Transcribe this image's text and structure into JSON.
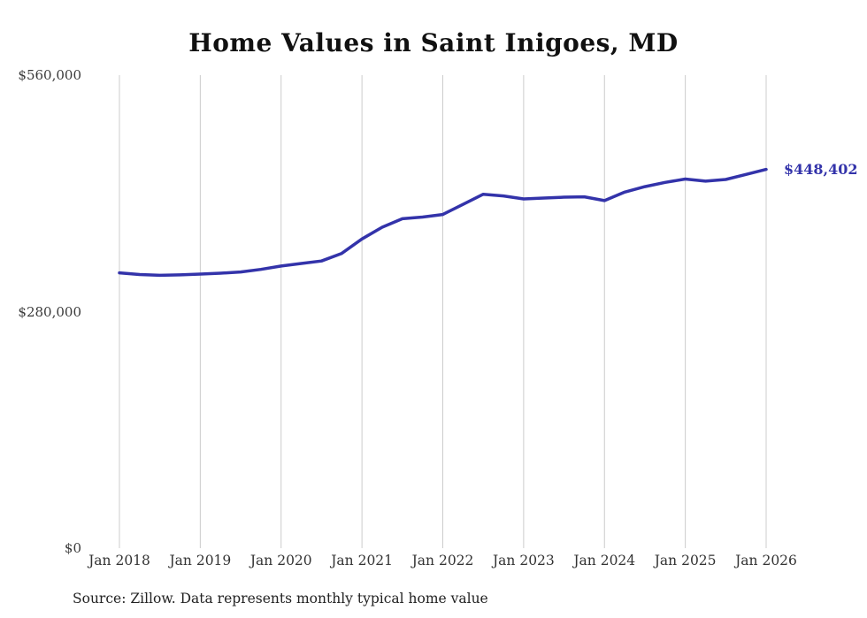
{
  "chart": {
    "title": "Home Values in Saint Inigoes, MD",
    "end_label": "$448,402",
    "source": "Source: Zillow. Data represents monthly typical home value",
    "line_color": "#3333aa",
    "grid_color": "#cccccc",
    "title_color": "#111111"
  },
  "chart_data": {
    "type": "line",
    "title": "Home Values in Saint Inigoes, MD",
    "xlabel": "",
    "ylabel": "",
    "ylim": [
      0,
      560000
    ],
    "grid": "vertical",
    "legend_position": "none",
    "y_ticks": [
      {
        "label": "$0",
        "value": 0
      },
      {
        "label": "$280,000",
        "value": 280000
      },
      {
        "label": "$560,000",
        "value": 560000
      }
    ],
    "x_ticks": [
      {
        "label": "Jan 2018",
        "year": 2018
      },
      {
        "label": "Jan 2019",
        "year": 2019
      },
      {
        "label": "Jan 2020",
        "year": 2020
      },
      {
        "label": "Jan 2021",
        "year": 2021
      },
      {
        "label": "Jan 2022",
        "year": 2022
      },
      {
        "label": "Jan 2023",
        "year": 2023
      },
      {
        "label": "Jan 2024",
        "year": 2024
      },
      {
        "label": "Jan 2025",
        "year": 2025
      },
      {
        "label": "Jan 2026",
        "year": 2026
      }
    ],
    "series": [
      {
        "name": "Typical home value",
        "points": [
          {
            "date": "2018-01",
            "value": 326000
          },
          {
            "date": "2018-04",
            "value": 324000
          },
          {
            "date": "2018-07",
            "value": 323000
          },
          {
            "date": "2018-10",
            "value": 323500
          },
          {
            "date": "2019-01",
            "value": 324500
          },
          {
            "date": "2019-04",
            "value": 325500
          },
          {
            "date": "2019-07",
            "value": 327000
          },
          {
            "date": "2019-10",
            "value": 330000
          },
          {
            "date": "2020-01",
            "value": 334000
          },
          {
            "date": "2020-04",
            "value": 337000
          },
          {
            "date": "2020-07",
            "value": 340000
          },
          {
            "date": "2020-10",
            "value": 349000
          },
          {
            "date": "2021-01",
            "value": 366000
          },
          {
            "date": "2021-04",
            "value": 380000
          },
          {
            "date": "2021-07",
            "value": 390000
          },
          {
            "date": "2021-10",
            "value": 392000
          },
          {
            "date": "2022-01",
            "value": 395000
          },
          {
            "date": "2022-04",
            "value": 407000
          },
          {
            "date": "2022-07",
            "value": 419000
          },
          {
            "date": "2022-10",
            "value": 417000
          },
          {
            "date": "2023-01",
            "value": 413500
          },
          {
            "date": "2023-04",
            "value": 414500
          },
          {
            "date": "2023-07",
            "value": 415500
          },
          {
            "date": "2023-10",
            "value": 416000
          },
          {
            "date": "2024-01",
            "value": 411500
          },
          {
            "date": "2024-04",
            "value": 421500
          },
          {
            "date": "2024-07",
            "value": 428000
          },
          {
            "date": "2024-10",
            "value": 433000
          },
          {
            "date": "2025-01",
            "value": 437000
          },
          {
            "date": "2025-04",
            "value": 434500
          },
          {
            "date": "2025-07",
            "value": 436500
          },
          {
            "date": "2025-10",
            "value": 442500
          },
          {
            "date": "2026-01",
            "value": 448402
          }
        ]
      }
    ],
    "last_value": 448402,
    "end_label": "$448,402",
    "source": "Source: Zillow. Data represents monthly typical home value"
  }
}
